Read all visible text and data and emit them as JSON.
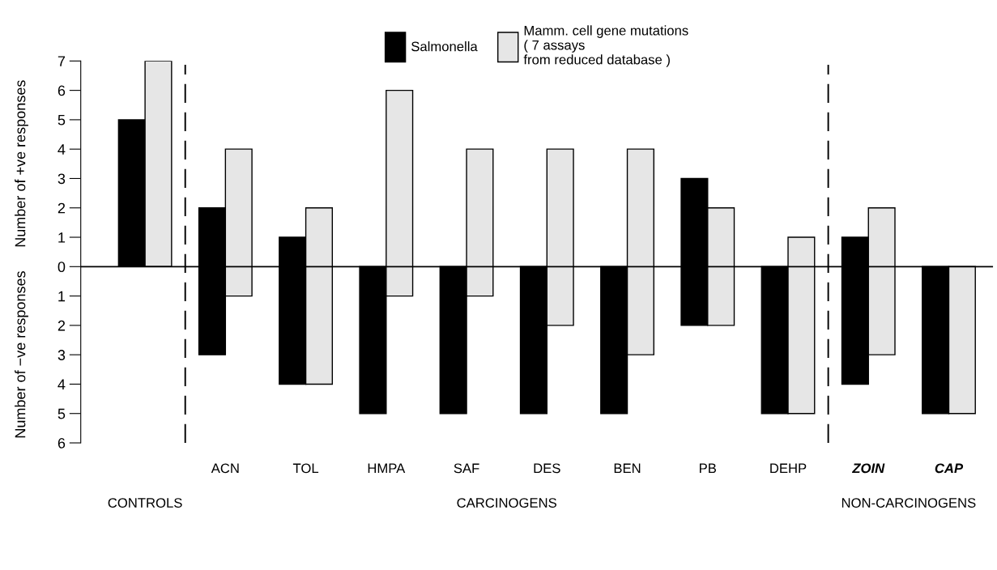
{
  "chart_data": {
    "type": "bar",
    "categories": [
      null,
      "ACN",
      "TOL",
      "HMPA",
      "SAF",
      "DES",
      "BEN",
      "PB",
      "DEHP",
      "ZOIN",
      "CAP"
    ],
    "series": [
      {
        "name": "Salmonella",
        "color": "#000000",
        "values": [
          5,
          5,
          5,
          5,
          5,
          5,
          5,
          5,
          5,
          5,
          5
        ],
        "base": [
          0,
          -3,
          -4,
          -5,
          -5,
          -5,
          -5,
          -2,
          -5,
          -4,
          -5
        ]
      },
      {
        "name": "Mamm. cell gene mutations\n( 7 assays\nfrom reduced database )",
        "color": "#e6e6e6",
        "values": [
          7,
          5,
          6,
          7,
          5,
          6,
          7,
          4,
          6,
          5,
          5
        ],
        "base": [
          0,
          -1,
          -4,
          -1,
          -1,
          -2,
          -3,
          -2,
          -5,
          -3,
          -5
        ]
      }
    ],
    "ylabel": "Number of +ve responses",
    "ylim": [
      -6,
      7
    ],
    "yticks": [
      {
        "value": -6,
        "label": "6"
      },
      {
        "value": -5,
        "label": "5"
      },
      {
        "value": -4,
        "label": "4"
      },
      {
        "value": -3,
        "label": "3"
      },
      {
        "value": -2,
        "label": "2"
      },
      {
        "value": -1,
        "label": "1"
      },
      0,
      1,
      2,
      3,
      4,
      5,
      6,
      7
    ],
    "ref_lines": [
      {
        "axis": "y",
        "value": 0,
        "color": "#000000",
        "line_style": "solid"
      }
    ],
    "annotations": [
      "Number of −ve responses",
      "CONTROLS",
      "CARCINOGENS",
      "NON-CARCINOGENS"
    ],
    "legend": "top",
    "grid": false
  }
}
